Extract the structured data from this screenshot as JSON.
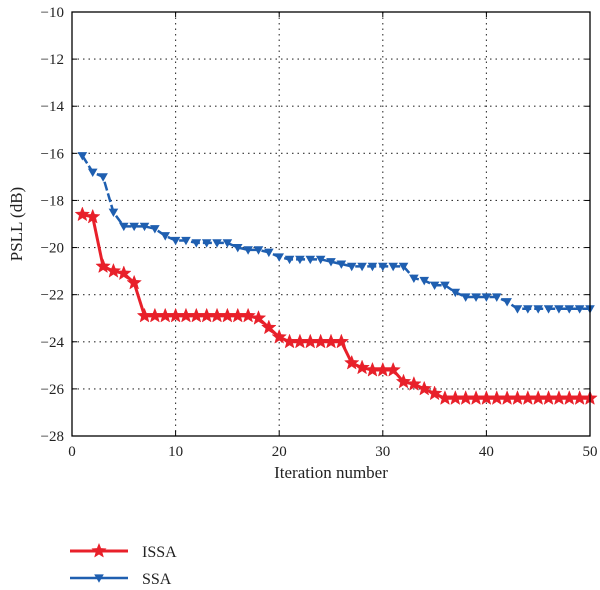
{
  "chart_data": {
    "type": "line",
    "xlabel": "Iteration number",
    "ylabel": "PSLL (dB)",
    "xlim": [
      0,
      50
    ],
    "ylim": [
      -28,
      -10
    ],
    "xticks": [
      0,
      10,
      20,
      30,
      40,
      50
    ],
    "yticks": [
      -28,
      -26,
      -24,
      -22,
      -20,
      -18,
      -16,
      -14,
      -12,
      -10
    ],
    "xtick_labels": [
      "0",
      "10",
      "20",
      "30",
      "40",
      "50"
    ],
    "ytick_labels": [
      "−28",
      "−26",
      "−24",
      "−22",
      "−20",
      "−18",
      "−16",
      "−14",
      "−12",
      "−10"
    ],
    "grid": true,
    "legend_position": "below-left",
    "series": [
      {
        "name": "ISSA",
        "color": "#e8202a",
        "marker": "star",
        "x": [
          1,
          2,
          3,
          4,
          5,
          6,
          7,
          8,
          9,
          10,
          11,
          12,
          13,
          14,
          15,
          16,
          17,
          18,
          19,
          20,
          21,
          22,
          23,
          24,
          25,
          26,
          27,
          28,
          29,
          30,
          31,
          32,
          33,
          34,
          35,
          36,
          37,
          38,
          39,
          40,
          41,
          42,
          43,
          44,
          45,
          46,
          47,
          48,
          49,
          50
        ],
        "values": [
          -18.6,
          -18.7,
          -20.8,
          -21.0,
          -21.1,
          -21.5,
          -22.9,
          -22.9,
          -22.9,
          -22.9,
          -22.9,
          -22.9,
          -22.9,
          -22.9,
          -22.9,
          -22.9,
          -22.9,
          -23.0,
          -23.4,
          -23.8,
          -24.0,
          -24.0,
          -24.0,
          -24.0,
          -24.0,
          -24.0,
          -24.9,
          -25.1,
          -25.2,
          -25.2,
          -25.2,
          -25.7,
          -25.8,
          -26.0,
          -26.2,
          -26.4,
          -26.4,
          -26.4,
          -26.4,
          -26.4,
          -26.4,
          -26.4,
          -26.4,
          -26.4,
          -26.4,
          -26.4,
          -26.4,
          -26.4,
          -26.4,
          -26.4
        ]
      },
      {
        "name": "SSA",
        "color": "#1f5fb0",
        "marker": "triangle-down",
        "x": [
          1,
          2,
          3,
          4,
          5,
          6,
          7,
          8,
          9,
          10,
          11,
          12,
          13,
          14,
          15,
          16,
          17,
          18,
          19,
          20,
          21,
          22,
          23,
          24,
          25,
          26,
          27,
          28,
          29,
          30,
          31,
          32,
          33,
          34,
          35,
          36,
          37,
          38,
          39,
          40,
          41,
          42,
          43,
          44,
          45,
          46,
          47,
          48,
          49,
          50
        ],
        "values": [
          -16.1,
          -16.8,
          -17.0,
          -18.5,
          -19.1,
          -19.1,
          -19.1,
          -19.2,
          -19.5,
          -19.7,
          -19.7,
          -19.8,
          -19.8,
          -19.8,
          -19.8,
          -20.0,
          -20.1,
          -20.1,
          -20.2,
          -20.4,
          -20.5,
          -20.5,
          -20.5,
          -20.5,
          -20.6,
          -20.7,
          -20.8,
          -20.8,
          -20.8,
          -20.8,
          -20.8,
          -20.8,
          -21.3,
          -21.4,
          -21.6,
          -21.6,
          -21.9,
          -22.1,
          -22.1,
          -22.1,
          -22.1,
          -22.3,
          -22.6,
          -22.6,
          -22.6,
          -22.6,
          -22.6,
          -22.6,
          -22.6,
          -22.6
        ]
      }
    ]
  }
}
